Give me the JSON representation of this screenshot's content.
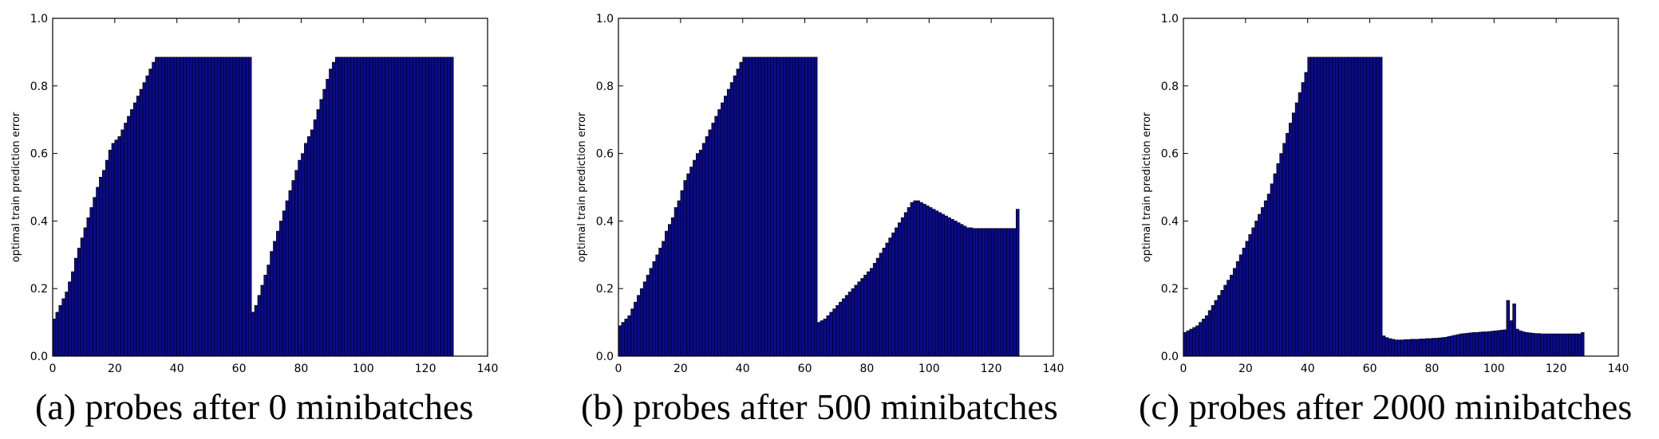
{
  "figure": {
    "captions": [
      "(a) probes after 0 minibatches",
      "(b) probes after 500 minibatches",
      "(c) probes after 2000 minibatches"
    ]
  },
  "chart_data": [
    {
      "type": "bar",
      "ylabel": "optimal train prediction error",
      "xlim": [
        0,
        140
      ],
      "ylim": [
        0,
        1.0
      ],
      "xticks": [
        0,
        20,
        40,
        60,
        80,
        100,
        120,
        140
      ],
      "yticks": [
        0.0,
        0.2,
        0.4,
        0.6,
        0.8,
        1.0
      ],
      "bar_color": "#0a0a8c",
      "x": [
        0,
        1,
        2,
        3,
        4,
        5,
        6,
        7,
        8,
        9,
        10,
        11,
        12,
        13,
        14,
        15,
        16,
        17,
        18,
        19,
        20,
        21,
        22,
        23,
        24,
        25,
        26,
        27,
        28,
        29,
        30,
        31,
        32,
        33,
        34,
        35,
        36,
        37,
        38,
        39,
        40,
        41,
        42,
        43,
        44,
        45,
        46,
        47,
        48,
        49,
        50,
        51,
        52,
        53,
        54,
        55,
        56,
        57,
        58,
        59,
        60,
        61,
        62,
        63,
        64,
        65,
        66,
        67,
        68,
        69,
        70,
        71,
        72,
        73,
        74,
        75,
        76,
        77,
        78,
        79,
        80,
        81,
        82,
        83,
        84,
        85,
        86,
        87,
        88,
        89,
        90,
        91,
        92,
        93,
        94,
        95,
        96,
        97,
        98,
        99,
        100,
        101,
        102,
        103,
        104,
        105,
        106,
        107,
        108,
        109,
        110,
        111,
        112,
        113,
        114,
        115,
        116,
        117,
        118,
        119,
        120,
        121,
        122,
        123,
        124,
        125,
        126,
        127,
        128
      ],
      "values": [
        0.11,
        0.13,
        0.15,
        0.17,
        0.19,
        0.22,
        0.25,
        0.29,
        0.32,
        0.35,
        0.38,
        0.41,
        0.44,
        0.47,
        0.5,
        0.53,
        0.55,
        0.58,
        0.61,
        0.63,
        0.64,
        0.65,
        0.67,
        0.69,
        0.71,
        0.73,
        0.75,
        0.77,
        0.79,
        0.81,
        0.83,
        0.85,
        0.87,
        0.885,
        0.885,
        0.885,
        0.885,
        0.885,
        0.885,
        0.885,
        0.885,
        0.885,
        0.885,
        0.885,
        0.885,
        0.885,
        0.885,
        0.885,
        0.885,
        0.885,
        0.885,
        0.885,
        0.885,
        0.885,
        0.885,
        0.885,
        0.885,
        0.885,
        0.885,
        0.885,
        0.885,
        0.885,
        0.885,
        0.885,
        0.13,
        0.15,
        0.18,
        0.21,
        0.24,
        0.27,
        0.31,
        0.34,
        0.37,
        0.4,
        0.43,
        0.46,
        0.49,
        0.52,
        0.55,
        0.58,
        0.6,
        0.63,
        0.65,
        0.67,
        0.7,
        0.73,
        0.76,
        0.79,
        0.82,
        0.85,
        0.87,
        0.885,
        0.885,
        0.885,
        0.885,
        0.885,
        0.885,
        0.885,
        0.885,
        0.885,
        0.885,
        0.885,
        0.885,
        0.885,
        0.885,
        0.885,
        0.885,
        0.885,
        0.885,
        0.885,
        0.885,
        0.885,
        0.885,
        0.885,
        0.885,
        0.885,
        0.885,
        0.885,
        0.885,
        0.885,
        0.885,
        0.885,
        0.885,
        0.885,
        0.885,
        0.885,
        0.885,
        0.885,
        0.885
      ]
    },
    {
      "type": "bar",
      "ylabel": "optimal train prediction error",
      "xlim": [
        0,
        140
      ],
      "ylim": [
        0,
        1.0
      ],
      "xticks": [
        0,
        20,
        40,
        60,
        80,
        100,
        120,
        140
      ],
      "yticks": [
        0.0,
        0.2,
        0.4,
        0.6,
        0.8,
        1.0
      ],
      "bar_color": "#0a0a8c",
      "x": [
        0,
        1,
        2,
        3,
        4,
        5,
        6,
        7,
        8,
        9,
        10,
        11,
        12,
        13,
        14,
        15,
        16,
        17,
        18,
        19,
        20,
        21,
        22,
        23,
        24,
        25,
        26,
        27,
        28,
        29,
        30,
        31,
        32,
        33,
        34,
        35,
        36,
        37,
        38,
        39,
        40,
        41,
        42,
        43,
        44,
        45,
        46,
        47,
        48,
        49,
        50,
        51,
        52,
        53,
        54,
        55,
        56,
        57,
        58,
        59,
        60,
        61,
        62,
        63,
        64,
        65,
        66,
        67,
        68,
        69,
        70,
        71,
        72,
        73,
        74,
        75,
        76,
        77,
        78,
        79,
        80,
        81,
        82,
        83,
        84,
        85,
        86,
        87,
        88,
        89,
        90,
        91,
        92,
        93,
        94,
        95,
        96,
        97,
        98,
        99,
        100,
        101,
        102,
        103,
        104,
        105,
        106,
        107,
        108,
        109,
        110,
        111,
        112,
        113,
        114,
        115,
        116,
        117,
        118,
        119,
        120,
        121,
        122,
        123,
        124,
        125,
        126,
        127,
        128
      ],
      "values": [
        0.09,
        0.1,
        0.11,
        0.12,
        0.14,
        0.16,
        0.18,
        0.2,
        0.22,
        0.24,
        0.26,
        0.28,
        0.3,
        0.32,
        0.34,
        0.37,
        0.39,
        0.41,
        0.44,
        0.46,
        0.49,
        0.52,
        0.54,
        0.56,
        0.58,
        0.6,
        0.61,
        0.63,
        0.65,
        0.67,
        0.69,
        0.71,
        0.73,
        0.75,
        0.77,
        0.79,
        0.81,
        0.83,
        0.85,
        0.87,
        0.885,
        0.885,
        0.885,
        0.885,
        0.885,
        0.885,
        0.885,
        0.885,
        0.885,
        0.885,
        0.885,
        0.885,
        0.885,
        0.885,
        0.885,
        0.885,
        0.885,
        0.885,
        0.885,
        0.885,
        0.885,
        0.885,
        0.885,
        0.885,
        0.1,
        0.105,
        0.11,
        0.12,
        0.13,
        0.14,
        0.15,
        0.16,
        0.17,
        0.18,
        0.19,
        0.2,
        0.21,
        0.22,
        0.23,
        0.24,
        0.25,
        0.26,
        0.275,
        0.29,
        0.305,
        0.32,
        0.335,
        0.35,
        0.365,
        0.38,
        0.395,
        0.41,
        0.425,
        0.44,
        0.455,
        0.46,
        0.46,
        0.455,
        0.45,
        0.445,
        0.44,
        0.435,
        0.43,
        0.425,
        0.42,
        0.415,
        0.41,
        0.405,
        0.4,
        0.395,
        0.39,
        0.385,
        0.38,
        0.38,
        0.378,
        0.378,
        0.378,
        0.378,
        0.378,
        0.378,
        0.378,
        0.378,
        0.378,
        0.378,
        0.378,
        0.378,
        0.378,
        0.378,
        0.435
      ]
    },
    {
      "type": "bar",
      "ylabel": "optimal train prediction error",
      "xlim": [
        0,
        140
      ],
      "ylim": [
        0,
        1.0
      ],
      "xticks": [
        0,
        20,
        40,
        60,
        80,
        100,
        120,
        140
      ],
      "yticks": [
        0.0,
        0.2,
        0.4,
        0.6,
        0.8,
        1.0
      ],
      "bar_color": "#0a0a8c",
      "x": [
        0,
        1,
        2,
        3,
        4,
        5,
        6,
        7,
        8,
        9,
        10,
        11,
        12,
        13,
        14,
        15,
        16,
        17,
        18,
        19,
        20,
        21,
        22,
        23,
        24,
        25,
        26,
        27,
        28,
        29,
        30,
        31,
        32,
        33,
        34,
        35,
        36,
        37,
        38,
        39,
        40,
        41,
        42,
        43,
        44,
        45,
        46,
        47,
        48,
        49,
        50,
        51,
        52,
        53,
        54,
        55,
        56,
        57,
        58,
        59,
        60,
        61,
        62,
        63,
        64,
        65,
        66,
        67,
        68,
        69,
        70,
        71,
        72,
        73,
        74,
        75,
        76,
        77,
        78,
        79,
        80,
        81,
        82,
        83,
        84,
        85,
        86,
        87,
        88,
        89,
        90,
        91,
        92,
        93,
        94,
        95,
        96,
        97,
        98,
        99,
        100,
        101,
        102,
        103,
        104,
        105,
        106,
        107,
        108,
        109,
        110,
        111,
        112,
        113,
        114,
        115,
        116,
        117,
        118,
        119,
        120,
        121,
        122,
        123,
        124,
        125,
        126,
        127,
        128
      ],
      "values": [
        0.07,
        0.075,
        0.08,
        0.085,
        0.09,
        0.1,
        0.11,
        0.12,
        0.135,
        0.15,
        0.165,
        0.18,
        0.195,
        0.21,
        0.225,
        0.24,
        0.26,
        0.28,
        0.3,
        0.32,
        0.34,
        0.36,
        0.38,
        0.4,
        0.42,
        0.44,
        0.46,
        0.48,
        0.51,
        0.54,
        0.57,
        0.6,
        0.63,
        0.66,
        0.69,
        0.72,
        0.75,
        0.78,
        0.81,
        0.84,
        0.885,
        0.885,
        0.885,
        0.885,
        0.885,
        0.885,
        0.885,
        0.885,
        0.885,
        0.885,
        0.885,
        0.885,
        0.885,
        0.885,
        0.885,
        0.885,
        0.885,
        0.885,
        0.885,
        0.885,
        0.885,
        0.885,
        0.885,
        0.885,
        0.06,
        0.055,
        0.052,
        0.05,
        0.048,
        0.048,
        0.048,
        0.049,
        0.049,
        0.05,
        0.05,
        0.05,
        0.051,
        0.051,
        0.052,
        0.052,
        0.053,
        0.053,
        0.054,
        0.055,
        0.056,
        0.058,
        0.06,
        0.062,
        0.064,
        0.066,
        0.067,
        0.068,
        0.069,
        0.07,
        0.07,
        0.071,
        0.072,
        0.072,
        0.073,
        0.074,
        0.075,
        0.076,
        0.077,
        0.078,
        0.165,
        0.105,
        0.155,
        0.08,
        0.075,
        0.072,
        0.07,
        0.069,
        0.068,
        0.067,
        0.067,
        0.066,
        0.066,
        0.066,
        0.066,
        0.066,
        0.066,
        0.066,
        0.066,
        0.066,
        0.066,
        0.066,
        0.066,
        0.066,
        0.07
      ]
    }
  ]
}
